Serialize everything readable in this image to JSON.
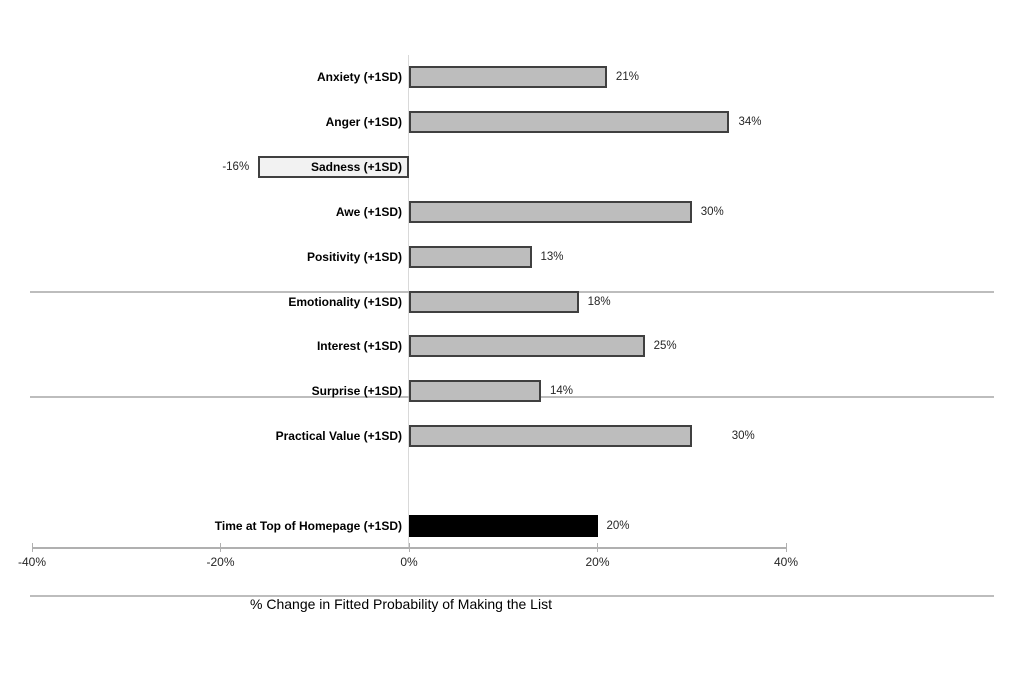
{
  "chart_data": {
    "type": "bar",
    "orientation": "horizontal",
    "title": "",
    "xlabel": "% Change in Fitted Probability of Making the List",
    "xlim": [
      -40,
      40
    ],
    "grid": "zero-line-only",
    "legend": null,
    "x_ticks": [
      {
        "value": -40,
        "label": "-40%"
      },
      {
        "value": -20,
        "label": "-20%"
      },
      {
        "value": 0,
        "label": "0%"
      },
      {
        "value": 20,
        "label": "20%"
      },
      {
        "value": 40,
        "label": "40%"
      }
    ],
    "rows": [
      {
        "category": "Anxiety (+1SD)",
        "value": 21,
        "value_label": "21%",
        "style": "gray"
      },
      {
        "category": "Anger (+1SD)",
        "value": 34,
        "value_label": "34%",
        "style": "gray"
      },
      {
        "category": "Sadness (+1SD)",
        "value": -16,
        "value_label": "-16%",
        "style": "light"
      },
      {
        "category": "Awe (+1SD)",
        "value": 30,
        "value_label": "30%",
        "style": "gray"
      },
      {
        "category": "Positivity (+1SD)",
        "value": 13,
        "value_label": "13%",
        "style": "gray"
      },
      {
        "category": "Emotionality (+1SD)",
        "value": 18,
        "value_label": "18%",
        "style": "gray"
      },
      {
        "category": "Interest (+1SD)",
        "value": 25,
        "value_label": "25%",
        "style": "gray"
      },
      {
        "category": "Surprise (+1SD)",
        "value": 14,
        "value_label": "14%",
        "style": "gray"
      },
      {
        "category": "Practical Value (+1SD)",
        "value": 30,
        "value_label": "30%",
        "style": "gray",
        "value_label_gap": 40
      },
      {
        "category": "",
        "value": null,
        "value_label": "",
        "style": "spacer"
      },
      {
        "category": "Time at Top of Homepage (+1SD)",
        "value": 20,
        "value_label": "20%",
        "style": "black"
      }
    ],
    "group_separators_after": [
      "Positivity (+1SD)",
      "Surprise (+1SD)"
    ],
    "colors": {
      "bar_fill": "#bdbdbd",
      "bar_border": "#404040",
      "light_bar_fill": "#f2f2f2",
      "black_bar_fill": "#000000",
      "axis_line": "#b0b0b0",
      "zero_line": "#d9d9d9",
      "separator_line": "#bdbdbd",
      "text": "#1a1a1a"
    }
  }
}
